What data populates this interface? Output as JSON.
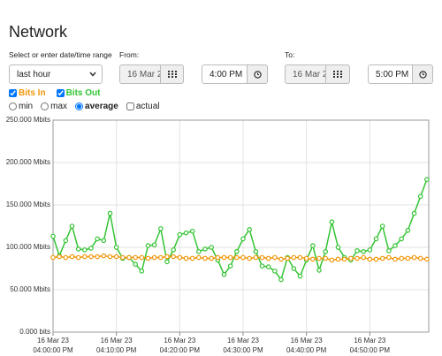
{
  "header": {
    "title": "Network"
  },
  "form": {
    "range_label": "Select or enter date/time range",
    "range_value": "last hour",
    "from_label": "From:",
    "from_date": "16 Mar 2",
    "from_time": "4:00 PM",
    "to_label": "To:",
    "to_date": "16 Mar 2",
    "to_time": "5:00 PM"
  },
  "options": {
    "modes": [
      "min",
      "max",
      "average"
    ],
    "selected_mode": "average",
    "actual": "actual"
  },
  "chart_data": {
    "type": "line",
    "x": [
      0,
      1,
      2,
      3,
      4,
      5,
      6,
      7,
      8,
      9,
      10,
      11,
      12,
      13,
      14,
      15,
      16,
      17,
      18,
      19,
      20,
      21,
      22,
      23,
      24,
      25,
      26,
      27,
      28,
      29,
      30,
      31,
      32,
      33,
      34,
      35,
      36,
      37,
      38,
      39,
      40,
      41,
      42,
      43,
      44,
      45,
      46,
      47,
      48,
      49,
      50,
      51,
      52,
      53,
      54,
      55,
      56,
      57,
      58,
      59
    ],
    "xlim": [
      0,
      59.3
    ],
    "xticks": [
      {
        "value": 0,
        "label": [
          "16 Mar 23",
          "04:00:00 PM"
        ]
      },
      {
        "value": 10,
        "label": [
          "16 Mar 23",
          "04:10:00 PM"
        ]
      },
      {
        "value": 20,
        "label": [
          "16 Mar 23",
          "04:20:00 PM"
        ]
      },
      {
        "value": 30,
        "label": [
          "16 Mar 23",
          "04:30:00 PM"
        ]
      },
      {
        "value": 40,
        "label": [
          "16 Mar 23",
          "04:40:00 PM"
        ]
      },
      {
        "value": 50,
        "label": [
          "16 Mar 23",
          "04:50:00 PM"
        ]
      }
    ],
    "ylim": [
      0,
      250
    ],
    "yticks": [
      {
        "value": 0,
        "label": "0.000 bits"
      },
      {
        "value": 50,
        "label": "50.000 Mbits"
      },
      {
        "value": 100,
        "label": "100.000 Mbits"
      },
      {
        "value": 150,
        "label": "150.000 Mbits"
      },
      {
        "value": 200,
        "label": "200.000 Mbits"
      },
      {
        "value": 250,
        "label": "250.000 Mbits"
      }
    ],
    "grid": true,
    "series": [
      {
        "name": "Bits In",
        "color": "#f0960a",
        "values": [
          88,
          89,
          88,
          89,
          88,
          89,
          89,
          89,
          90,
          89,
          89,
          88,
          88,
          88,
          88,
          87,
          88,
          88,
          89,
          89,
          88,
          87,
          87,
          88,
          87,
          87,
          88,
          88,
          88,
          88,
          88,
          87,
          88,
          88,
          87,
          88,
          86,
          87,
          88,
          88,
          87,
          86,
          87,
          87,
          85,
          86,
          86,
          87,
          87,
          88,
          86,
          86,
          87,
          88,
          86,
          87,
          87,
          88,
          87,
          86
        ]
      },
      {
        "name": "Bits Out",
        "color": "#33c433",
        "values": [
          113,
          90,
          108,
          125,
          98,
          97,
          99,
          110,
          108,
          140,
          100,
          87,
          88,
          80,
          72,
          102,
          103,
          122,
          83,
          97,
          115,
          117,
          119,
          95,
          98,
          100,
          85,
          68,
          78,
          95,
          110,
          121,
          95,
          78,
          77,
          72,
          62,
          88,
          75,
          66,
          85,
          102,
          73,
          95,
          130,
          100,
          88,
          85,
          96,
          95,
          97,
          110,
          125,
          96,
          102,
          110,
          120,
          140,
          160,
          180
        ]
      }
    ]
  }
}
